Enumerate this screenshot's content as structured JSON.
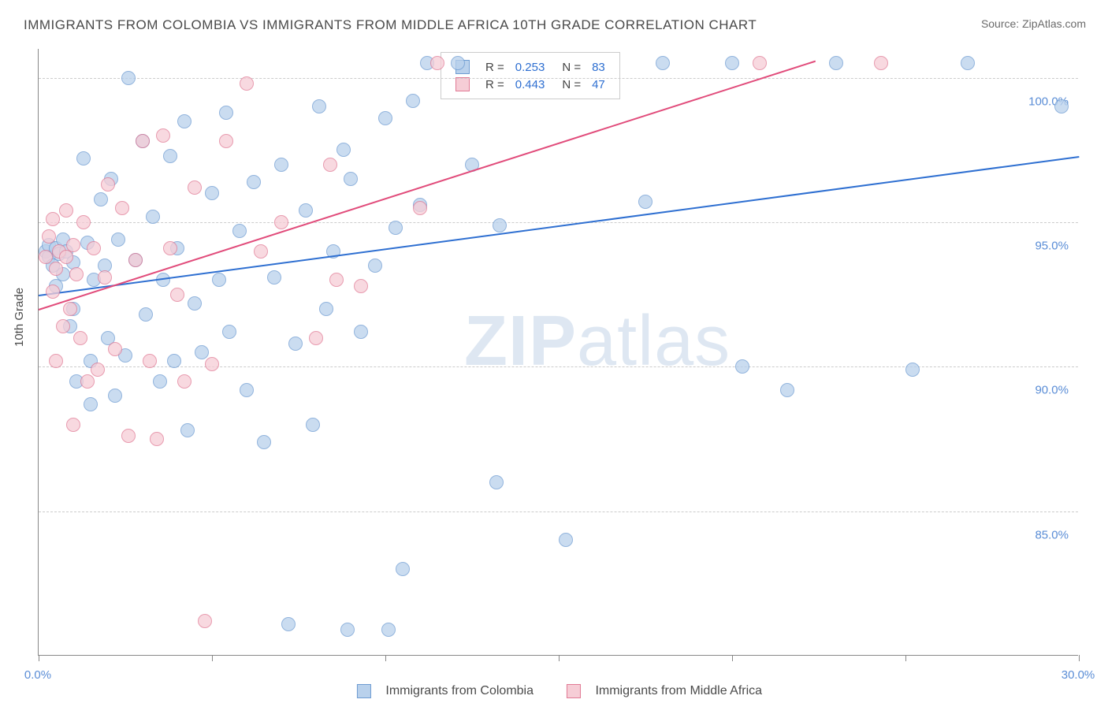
{
  "title": "IMMIGRANTS FROM COLOMBIA VS IMMIGRANTS FROM MIDDLE AFRICA 10TH GRADE CORRELATION CHART",
  "source_label": "Source: ",
  "source_name": "ZipAtlas.com",
  "ylabel": "10th Grade",
  "watermark_a": "ZIP",
  "watermark_b": "atlas",
  "chart": {
    "type": "scatter",
    "xlim": [
      0,
      30
    ],
    "ylim": [
      80,
      101
    ],
    "xtick_positions": [
      0,
      5,
      10,
      15,
      20,
      25,
      30
    ],
    "xtick_labels": [
      "0.0%",
      "",
      "",
      "",
      "",
      "",
      "30.0%"
    ],
    "ytick_positions": [
      85,
      90,
      95,
      100
    ],
    "ytick_labels": [
      "85.0%",
      "90.0%",
      "95.0%",
      "100.0%"
    ],
    "grid_color": "#cccccc",
    "background_color": "#ffffff",
    "marker_radius": 9,
    "series": [
      {
        "name": "Immigrants from Colombia",
        "fill": "#b9d1ec",
        "stroke": "#6e9cd2",
        "trend_color": "#2e6fd1",
        "R": "0.253",
        "N": "83",
        "trend": {
          "x1": 0,
          "y1": 92.5,
          "x2": 30,
          "y2": 97.3
        },
        "points": [
          [
            0.2,
            94.0
          ],
          [
            0.3,
            93.8
          ],
          [
            0.3,
            94.2
          ],
          [
            0.4,
            93.5
          ],
          [
            0.5,
            94.1
          ],
          [
            0.5,
            92.8
          ],
          [
            0.6,
            93.9
          ],
          [
            0.7,
            94.4
          ],
          [
            0.7,
            93.2
          ],
          [
            0.8,
            94.0
          ],
          [
            0.9,
            91.4
          ],
          [
            1.0,
            93.6
          ],
          [
            1.0,
            92.0
          ],
          [
            1.1,
            89.5
          ],
          [
            1.3,
            97.2
          ],
          [
            1.4,
            94.3
          ],
          [
            1.5,
            90.2
          ],
          [
            1.5,
            88.7
          ],
          [
            1.6,
            93.0
          ],
          [
            1.8,
            95.8
          ],
          [
            1.9,
            93.5
          ],
          [
            2.0,
            91.0
          ],
          [
            2.1,
            96.5
          ],
          [
            2.2,
            89.0
          ],
          [
            2.3,
            94.4
          ],
          [
            2.5,
            90.4
          ],
          [
            2.6,
            100.0
          ],
          [
            2.8,
            93.7
          ],
          [
            3.0,
            97.8
          ],
          [
            3.1,
            91.8
          ],
          [
            3.3,
            95.2
          ],
          [
            3.5,
            89.5
          ],
          [
            3.6,
            93.0
          ],
          [
            3.8,
            97.3
          ],
          [
            3.9,
            90.2
          ],
          [
            4.0,
            94.1
          ],
          [
            4.2,
            98.5
          ],
          [
            4.3,
            87.8
          ],
          [
            4.5,
            92.2
          ],
          [
            4.7,
            90.5
          ],
          [
            5.0,
            96.0
          ],
          [
            5.2,
            93.0
          ],
          [
            5.4,
            98.8
          ],
          [
            5.5,
            91.2
          ],
          [
            5.8,
            94.7
          ],
          [
            6.0,
            89.2
          ],
          [
            6.2,
            96.4
          ],
          [
            6.5,
            87.4
          ],
          [
            6.8,
            93.1
          ],
          [
            7.0,
            97.0
          ],
          [
            7.2,
            81.1
          ],
          [
            7.4,
            90.8
          ],
          [
            7.7,
            95.4
          ],
          [
            7.9,
            88.0
          ],
          [
            8.1,
            99.0
          ],
          [
            8.3,
            92.0
          ],
          [
            8.5,
            94.0
          ],
          [
            8.8,
            97.5
          ],
          [
            8.9,
            80.9
          ],
          [
            9.0,
            96.5
          ],
          [
            9.3,
            91.2
          ],
          [
            9.7,
            93.5
          ],
          [
            10.0,
            98.6
          ],
          [
            10.1,
            80.9
          ],
          [
            10.3,
            94.8
          ],
          [
            10.5,
            83.0
          ],
          [
            10.8,
            99.2
          ],
          [
            11.0,
            95.6
          ],
          [
            11.2,
            100.5
          ],
          [
            12.1,
            100.5
          ],
          [
            12.5,
            97.0
          ],
          [
            13.2,
            86.0
          ],
          [
            13.3,
            94.9
          ],
          [
            15.2,
            84.0
          ],
          [
            17.5,
            95.7
          ],
          [
            18.0,
            100.5
          ],
          [
            20.0,
            100.5
          ],
          [
            20.3,
            90.0
          ],
          [
            21.6,
            89.2
          ],
          [
            23.0,
            100.5
          ],
          [
            25.2,
            89.9
          ],
          [
            26.8,
            100.5
          ],
          [
            29.5,
            99.0
          ]
        ]
      },
      {
        "name": "Immigrants from Middle Africa",
        "fill": "#f6cdd6",
        "stroke": "#e17a95",
        "trend_color": "#e14c7b",
        "R": "0.443",
        "N": "47",
        "trend": {
          "x1": 0,
          "y1": 92.0,
          "x2": 22.4,
          "y2": 100.6
        },
        "points": [
          [
            0.2,
            93.8
          ],
          [
            0.3,
            94.5
          ],
          [
            0.4,
            92.6
          ],
          [
            0.4,
            95.1
          ],
          [
            0.5,
            93.4
          ],
          [
            0.5,
            90.2
          ],
          [
            0.6,
            94.0
          ],
          [
            0.7,
            91.4
          ],
          [
            0.8,
            93.8
          ],
          [
            0.8,
            95.4
          ],
          [
            0.9,
            92.0
          ],
          [
            1.0,
            94.2
          ],
          [
            1.0,
            88.0
          ],
          [
            1.1,
            93.2
          ],
          [
            1.2,
            91.0
          ],
          [
            1.3,
            95.0
          ],
          [
            1.4,
            89.5
          ],
          [
            1.6,
            94.1
          ],
          [
            1.7,
            89.9
          ],
          [
            1.9,
            93.1
          ],
          [
            2.0,
            96.3
          ],
          [
            2.2,
            90.6
          ],
          [
            2.4,
            95.5
          ],
          [
            2.6,
            87.6
          ],
          [
            2.8,
            93.7
          ],
          [
            3.0,
            97.8
          ],
          [
            3.2,
            90.2
          ],
          [
            3.4,
            87.5
          ],
          [
            3.6,
            98.0
          ],
          [
            3.8,
            94.1
          ],
          [
            4.0,
            92.5
          ],
          [
            4.2,
            89.5
          ],
          [
            4.5,
            96.2
          ],
          [
            4.8,
            81.2
          ],
          [
            5.0,
            90.1
          ],
          [
            5.4,
            97.8
          ],
          [
            6.0,
            99.8
          ],
          [
            6.4,
            94.0
          ],
          [
            7.0,
            95.0
          ],
          [
            8.0,
            91.0
          ],
          [
            8.4,
            97.0
          ],
          [
            8.6,
            93.0
          ],
          [
            9.3,
            92.8
          ],
          [
            11.0,
            95.5
          ],
          [
            11.5,
            100.5
          ],
          [
            20.8,
            100.5
          ],
          [
            24.3,
            100.5
          ]
        ]
      }
    ]
  },
  "legend_stats": {
    "r_label": "R =",
    "n_label": "N ="
  },
  "colors": {
    "title": "#4a4a4a",
    "tick_label": "#5a8dd6",
    "stats_value": "#2e6fd1"
  }
}
